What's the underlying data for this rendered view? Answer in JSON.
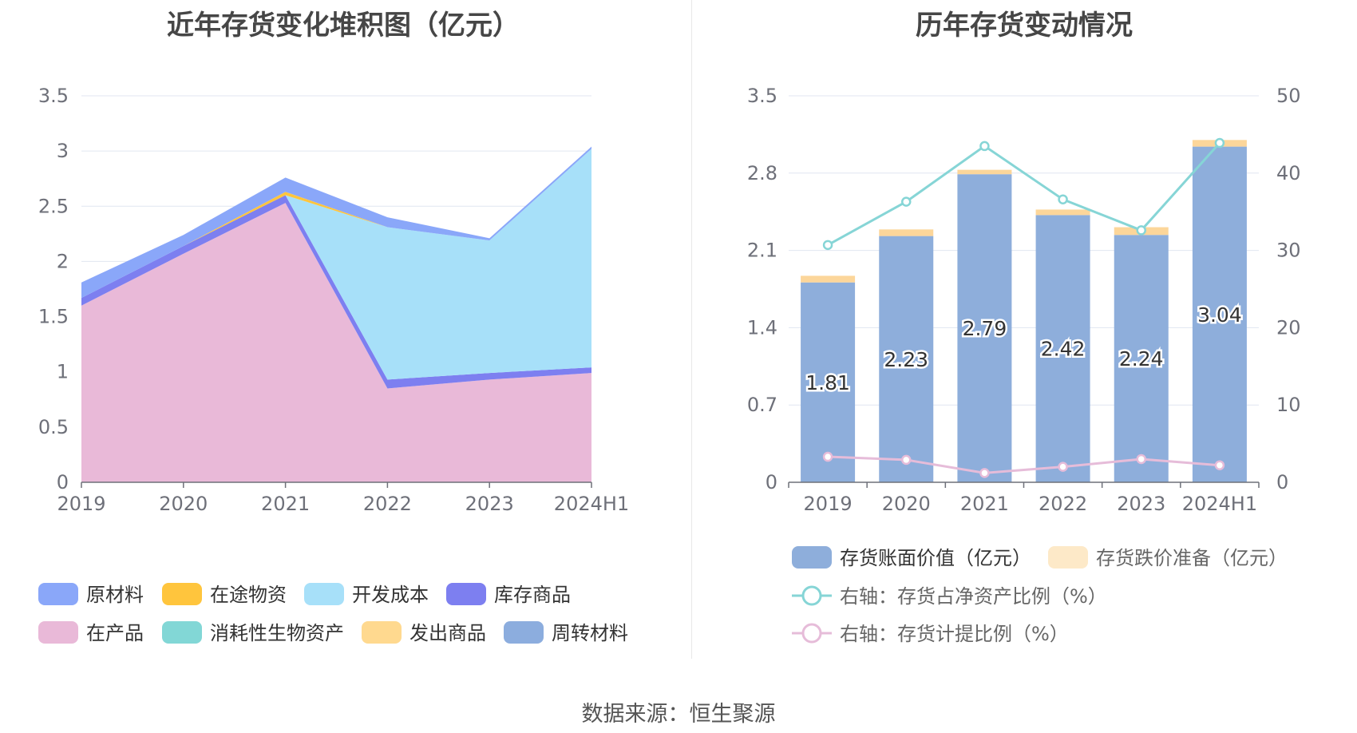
{
  "source_text": "数据来源：恒生聚源",
  "chart_data": [
    {
      "type": "area",
      "title": "近年存货变化堆积图（亿元）",
      "categories": [
        "2019",
        "2020",
        "2021",
        "2022",
        "2023",
        "2024H1"
      ],
      "ylim": [
        0,
        3.5
      ],
      "yticks": [
        "0",
        "0.5",
        "1",
        "1.5",
        "2",
        "2.5",
        "3",
        "3.5"
      ],
      "stacked": true,
      "grid": true,
      "series": [
        {
          "name": "在产品",
          "color": "#e9b9d8",
          "values": [
            1.6,
            2.07,
            2.53,
            0.85,
            0.93,
            0.99
          ]
        },
        {
          "name": "库存商品",
          "color": "#7d7ff0",
          "values": [
            0.07,
            0.07,
            0.07,
            0.08,
            0.06,
            0.05
          ]
        },
        {
          "name": "开发成本",
          "color": "#a7e0f9",
          "values": [
            0,
            0,
            0,
            1.38,
            1.2,
            1.98
          ]
        },
        {
          "name": "在途物资",
          "color": "#ffc53d",
          "values": [
            0,
            0,
            0.03,
            0,
            0,
            0
          ]
        },
        {
          "name": "消耗性生物资产",
          "color": "#82d7d6",
          "values": [
            0,
            0,
            0,
            0,
            0,
            0
          ]
        },
        {
          "name": "发出商品",
          "color": "#ffd98f",
          "values": [
            0,
            0,
            0,
            0,
            0,
            0
          ]
        },
        {
          "name": "周转材料",
          "color": "#8cadde",
          "values": [
            0,
            0,
            0,
            0,
            0,
            0
          ]
        },
        {
          "name": "原材料",
          "color": "#8aa7f9",
          "values": [
            0.14,
            0.1,
            0.13,
            0.09,
            0.02,
            0.02
          ]
        }
      ],
      "legend_order": [
        "原材料",
        "在途物资",
        "开发成本",
        "库存商品",
        "在产品",
        "消耗性生物资产",
        "发出商品",
        "周转材料"
      ],
      "legend_position": "bottom"
    },
    {
      "type": "bar",
      "title": "历年存货变动情况",
      "categories": [
        "2019",
        "2020",
        "2021",
        "2022",
        "2023",
        "2024H1"
      ],
      "ylim": [
        0,
        3.5
      ],
      "yticks": [
        "0",
        "0.7",
        "1.4",
        "2.1",
        "2.8",
        "3.5"
      ],
      "y2lim": [
        0,
        50
      ],
      "y2ticks": [
        "0",
        "10",
        "20",
        "30",
        "40",
        "50"
      ],
      "grid": true,
      "series": [
        {
          "name": "存货账面价值（亿元）",
          "type": "bar",
          "stack": "inv",
          "color": "#8eaedb",
          "values": [
            1.81,
            2.23,
            2.79,
            2.42,
            2.24,
            3.04
          ],
          "labels": [
            "1.81",
            "2.23",
            "2.79",
            "2.42",
            "2.24",
            "3.04"
          ]
        },
        {
          "name": "存货跌价准备（亿元）",
          "type": "bar",
          "stack": "inv",
          "color": "#fcd69a",
          "legend_color": "#fde9c8",
          "values": [
            0.06,
            0.06,
            0.04,
            0.05,
            0.07,
            0.06
          ]
        },
        {
          "name": "右轴：存货占净资产比例（%）",
          "type": "line",
          "axis": "right",
          "color": "#86d5d6",
          "values": [
            30.7,
            36.3,
            43.5,
            36.6,
            32.6,
            43.9
          ]
        },
        {
          "name": "右轴：存货计提比例（%）",
          "type": "line",
          "axis": "right",
          "color": "#e6bcd9",
          "values": [
            3.3,
            2.9,
            1.2,
            2.0,
            3.0,
            2.2
          ]
        }
      ],
      "legend_position": "bottom"
    }
  ]
}
